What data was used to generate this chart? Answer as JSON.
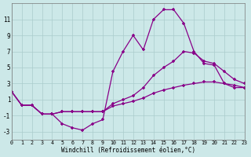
{
  "bg_color": "#cce8e8",
  "grid_color": "#aacccc",
  "line_color": "#880088",
  "xlabel": "Windchill (Refroidissement éolien,°C)",
  "x": [
    0,
    1,
    2,
    3,
    4,
    5,
    6,
    7,
    8,
    9,
    10,
    11,
    12,
    13,
    14,
    15,
    16,
    17,
    18,
    19,
    20,
    21,
    22,
    23
  ],
  "line1": [
    2.0,
    0.3,
    0.3,
    -0.8,
    -0.8,
    -2.0,
    -2.5,
    -2.8,
    -2.0,
    -1.5,
    4.5,
    7.0,
    9.0,
    7.2,
    11.0,
    12.2,
    12.2,
    10.5,
    7.0,
    5.5,
    5.3,
    3.0,
    2.5,
    2.5
  ],
  "line2": [
    2.0,
    0.3,
    0.3,
    -0.8,
    -0.8,
    -0.5,
    -0.5,
    -0.5,
    -0.5,
    -0.5,
    0.5,
    1.0,
    1.5,
    2.5,
    4.0,
    5.0,
    5.8,
    7.0,
    6.8,
    5.8,
    5.5,
    4.5,
    3.5,
    3.0
  ],
  "line3": [
    2.0,
    0.3,
    0.3,
    -0.8,
    -0.8,
    -0.5,
    -0.5,
    -0.5,
    -0.5,
    -0.5,
    0.2,
    0.5,
    0.8,
    1.2,
    1.8,
    2.2,
    2.5,
    2.8,
    3.0,
    3.2,
    3.2,
    3.0,
    2.8,
    2.5
  ],
  "ylim": [
    -4,
    13
  ],
  "yticks": [
    -3,
    -1,
    1,
    3,
    5,
    7,
    9,
    11
  ],
  "xlim": [
    0,
    23
  ],
  "xticks": [
    0,
    1,
    2,
    3,
    4,
    5,
    6,
    7,
    8,
    9,
    10,
    11,
    12,
    13,
    14,
    15,
    16,
    17,
    18,
    19,
    20,
    21,
    22,
    23
  ]
}
